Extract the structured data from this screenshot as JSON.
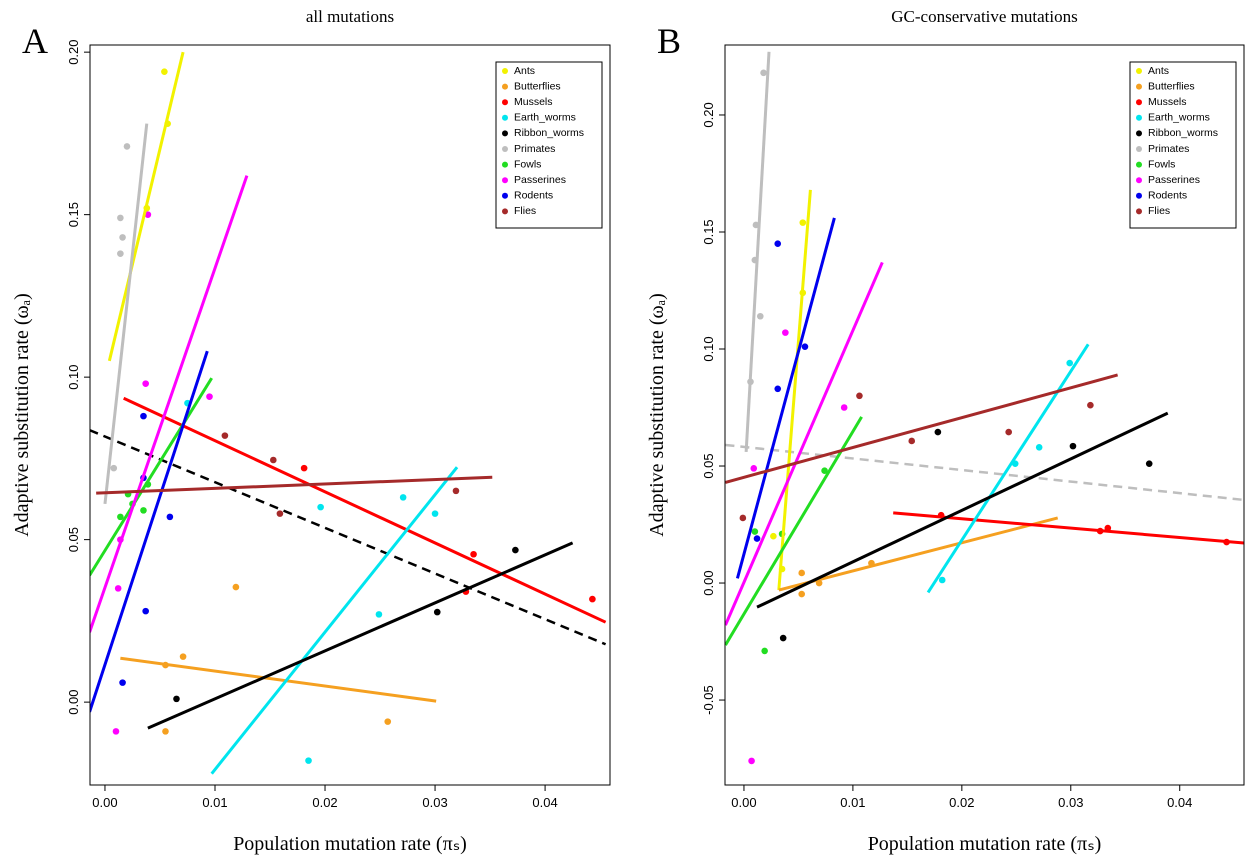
{
  "chart_data": [
    {
      "type": "scatter",
      "panel": "A",
      "title": "all mutations",
      "xlabel": "Population mutation rate (πₛ)",
      "ylabel": "Adaptive substitution rate (ωₐ)",
      "xlim": [
        -0.00136,
        0.0459
      ],
      "ylim": [
        -0.0255,
        0.2022
      ],
      "xticks": [
        {
          "value": 0,
          "label": "0.00"
        },
        {
          "value": 0.01,
          "label": "0.01"
        },
        {
          "value": 0.02,
          "label": "0.02"
        },
        {
          "value": 0.03,
          "label": "0.03"
        },
        {
          "value": 0.04,
          "label": "0.04"
        }
      ],
      "yticks": [
        {
          "value": 0,
          "label": "0.00"
        },
        0.05,
        {
          "value": 0.1,
          "label": "0.10"
        },
        0.15,
        {
          "value": 0.2,
          "label": "0.20"
        }
      ],
      "legend": "top-right",
      "series": [
        {
          "name": "Ants",
          "color": "#f2f200",
          "x": [
            0.0038,
            0.0054,
            0.0057
          ],
          "y": [
            0.152,
            0.194,
            0.178
          ],
          "fit": {
            "x": [
              0.0004,
              0.0071
            ],
            "y": [
              0.105,
              0.2
            ]
          }
        },
        {
          "name": "Butterflies",
          "color": "#f5a020",
          "x": [
            0.0055,
            0.0071,
            0.0055,
            0.0119,
            0.0257
          ],
          "y": [
            0.0114,
            0.014,
            -0.009,
            0.0354,
            -0.006
          ],
          "fit": {
            "x": [
              0.0014,
              0.0301
            ],
            "y": [
              0.0135,
              0.0003
            ]
          }
        },
        {
          "name": "Mussels",
          "color": "#ff0000",
          "x": [
            0.0181,
            0.0335,
            0.0328,
            0.0443
          ],
          "y": [
            0.072,
            0.0455,
            0.034,
            0.0317
          ],
          "fit": {
            "x": [
              0.0017,
              0.0455
            ],
            "y": [
              0.0935,
              0.0246
            ]
          }
        },
        {
          "name": "Earth_worms",
          "color": "#00e5ee",
          "x": [
            0.0075,
            0.0196,
            0.0271,
            0.03,
            0.0249,
            0.0185
          ],
          "y": [
            0.092,
            0.06,
            0.063,
            0.058,
            0.027,
            -0.018
          ],
          "fit": {
            "x": [
              0.0097,
              0.032
            ],
            "y": [
              -0.022,
              0.0723
            ]
          }
        },
        {
          "name": "Ribbon_worms",
          "color": "#000000",
          "x": [
            0.0065,
            0.0302,
            0.0373
          ],
          "y": [
            0.001,
            0.0277,
            0.0468
          ],
          "fit": {
            "x": [
              0.0039,
              0.0425
            ],
            "y": [
              -0.008,
              0.049
            ]
          }
        },
        {
          "name": "Primates",
          "color": "#bebebe",
          "x": [
            0.002,
            0.0014,
            0.0016,
            0.0014,
            0.0008
          ],
          "y": [
            0.171,
            0.149,
            0.143,
            0.138,
            0.072
          ],
          "fit": {
            "x": [
              0,
              0.0038
            ],
            "y": [
              0.061,
              0.178
            ]
          }
        },
        {
          "name": "Fowls",
          "color": "#22dd22",
          "x": [
            0.0014,
            0.0025,
            0.0021,
            0.0035,
            0.0039
          ],
          "y": [
            0.057,
            0.061,
            0.064,
            0.059,
            0.067
          ],
          "fit": {
            "x": [
              -0.0014,
              0.0097
            ],
            "y": [
              0.039,
              0.0997
            ]
          }
        },
        {
          "name": "Passerines",
          "color": "#ff00ff",
          "x": [
            0.0039,
            0.0037,
            0.0095,
            0.0014,
            0.0012,
            0.001
          ],
          "y": [
            0.15,
            0.098,
            0.094,
            0.05,
            0.035,
            -0.009
          ],
          "fit": {
            "x": [
              -0.0014,
              0.0129
            ],
            "y": [
              0.0215,
              0.162
            ]
          }
        },
        {
          "name": "Rodents",
          "color": "#0000ee",
          "x": [
            0.0035,
            0.0035,
            0.0059,
            0.0037,
            0.0016
          ],
          "y": [
            0.088,
            0.069,
            0.057,
            0.028,
            0.006
          ],
          "fit": {
            "x": [
              -0.0014,
              0.0093
            ],
            "y": [
              -0.003,
              0.108
            ]
          }
        },
        {
          "name": "Flies",
          "color": "#a52a2a",
          "x": [
            0.0109,
            0.0153,
            0.0159,
            0.0319
          ],
          "y": [
            0.082,
            0.0745,
            0.058,
            0.065
          ],
          "fit": {
            "x": [
              -0.0008,
              0.0352
            ],
            "y": [
              0.0643,
              0.0692
            ]
          }
        }
      ],
      "overall_fit": {
        "color": "#000000",
        "x": [
          -0.0014,
          0.0455
        ],
        "y": [
          0.0837,
          0.0178
        ]
      }
    },
    {
      "type": "scatter",
      "panel": "B",
      "title": "GC-conservative mutations",
      "xlabel": "Population mutation rate (πₛ)",
      "ylabel": "Adaptive substitution rate (ωₐ)",
      "xlim": [
        -0.00174,
        0.0459
      ],
      "ylim": [
        -0.0863,
        0.2299
      ],
      "xticks": [
        {
          "value": 0,
          "label": "0.00"
        },
        {
          "value": 0.01,
          "label": "0.01"
        },
        {
          "value": 0.02,
          "label": "0.02"
        },
        {
          "value": 0.03,
          "label": "0.03"
        },
        {
          "value": 0.04,
          "label": "0.04"
        }
      ],
      "yticks": [
        -0.05,
        {
          "value": 0,
          "label": "0.00"
        },
        0.05,
        {
          "value": 0.1,
          "label": "0.10"
        },
        0.15,
        {
          "value": 0.2,
          "label": "0.20"
        }
      ],
      "legend": "top-right",
      "series": [
        {
          "name": "Ants",
          "color": "#f2f200",
          "x": [
            0.0054,
            0.0054,
            0.0027,
            0.0035
          ],
          "y": [
            0.154,
            0.124,
            0.02,
            0.006
          ],
          "fit": {
            "x": [
              0.0032,
              0.0061
            ],
            "y": [
              -0.003,
              0.168
            ]
          }
        },
        {
          "name": "Butterflies",
          "color": "#f5a020",
          "x": [
            0.0053,
            0.0069,
            0.0117,
            0.0053
          ],
          "y": [
            0.0043,
            0,
            0.0085,
            -0.0047
          ],
          "fit": {
            "x": [
              0.0032,
              0.0288
            ],
            "y": [
              -0.003,
              0.0278
            ]
          }
        },
        {
          "name": "Mussels",
          "color": "#ff0000",
          "x": [
            0.0181,
            0.0327,
            0.0334,
            0.0443
          ],
          "y": [
            0.029,
            0.0222,
            0.0235,
            0.0175
          ],
          "fit": {
            "x": [
              0.0137,
              0.0459
            ],
            "y": [
              0.03,
              0.0171
            ]
          }
        },
        {
          "name": "Earth_worms",
          "color": "#00e5ee",
          "x": [
            0.0299,
            0.0271,
            0.0249,
            0.0182
          ],
          "y": [
            0.094,
            0.058,
            0.051,
            0.0013
          ],
          "fit": {
            "x": [
              0.0169,
              0.0316
            ],
            "y": [
              -0.004,
              0.102
            ]
          }
        },
        {
          "name": "Ribbon_worms",
          "color": "#000000",
          "x": [
            0.0178,
            0.0302,
            0.0372,
            0.0036
          ],
          "y": [
            0.0645,
            0.0585,
            0.051,
            -0.0235
          ],
          "fit": {
            "x": [
              0.0012,
              0.0389
            ],
            "y": [
              -0.0103,
              0.0726
            ]
          }
        },
        {
          "name": "Primates",
          "color": "#bebebe",
          "x": [
            0.0018,
            0.0011,
            0.001,
            0.0015,
            0.0006
          ],
          "y": [
            0.218,
            0.153,
            0.138,
            0.114,
            0.086
          ],
          "fit": {
            "x": [
              0.0002,
              0.0023
            ],
            "y": [
              0.056,
              0.227
            ]
          }
        },
        {
          "name": "Fowls",
          "color": "#22dd22",
          "x": [
            0.0074,
            0.001,
            0.0035,
            0.0019
          ],
          "y": [
            0.048,
            0.022,
            0.021,
            -0.029
          ],
          "fit": {
            "x": [
              -0.0017,
              0.0108
            ],
            "y": [
              -0.0265,
              0.071
            ]
          }
        },
        {
          "name": "Passerines",
          "color": "#ff00ff",
          "x": [
            0.0038,
            0.0092,
            0.0009,
            0.0007
          ],
          "y": [
            0.107,
            0.075,
            0.049,
            -0.076
          ],
          "fit": {
            "x": [
              -0.0017,
              0.0127
            ],
            "y": [
              -0.018,
              0.137
            ]
          }
        },
        {
          "name": "Rodents",
          "color": "#0000ee",
          "x": [
            0.0031,
            0.0056,
            0.0031,
            0.0012
          ],
          "y": [
            0.145,
            0.101,
            0.083,
            0.019
          ],
          "fit": {
            "x": [
              -0.0006,
              0.0083
            ],
            "y": [
              0.002,
              0.156
            ]
          }
        },
        {
          "name": "Flies",
          "color": "#a52a2a",
          "x": [
            0.0106,
            0.0154,
            0.0243,
            0.0318,
            -0.0001
          ],
          "y": [
            0.08,
            0.0607,
            0.0645,
            0.076,
            0.0278
          ],
          "fit": {
            "x": [
              -0.0017,
              0.0343
            ],
            "y": [
              0.043,
              0.0889
            ]
          }
        }
      ],
      "overall_fit": {
        "color": "#bebebe",
        "x": [
          -0.0017,
          0.0459
        ],
        "y": [
          0.059,
          0.0355
        ]
      }
    }
  ]
}
